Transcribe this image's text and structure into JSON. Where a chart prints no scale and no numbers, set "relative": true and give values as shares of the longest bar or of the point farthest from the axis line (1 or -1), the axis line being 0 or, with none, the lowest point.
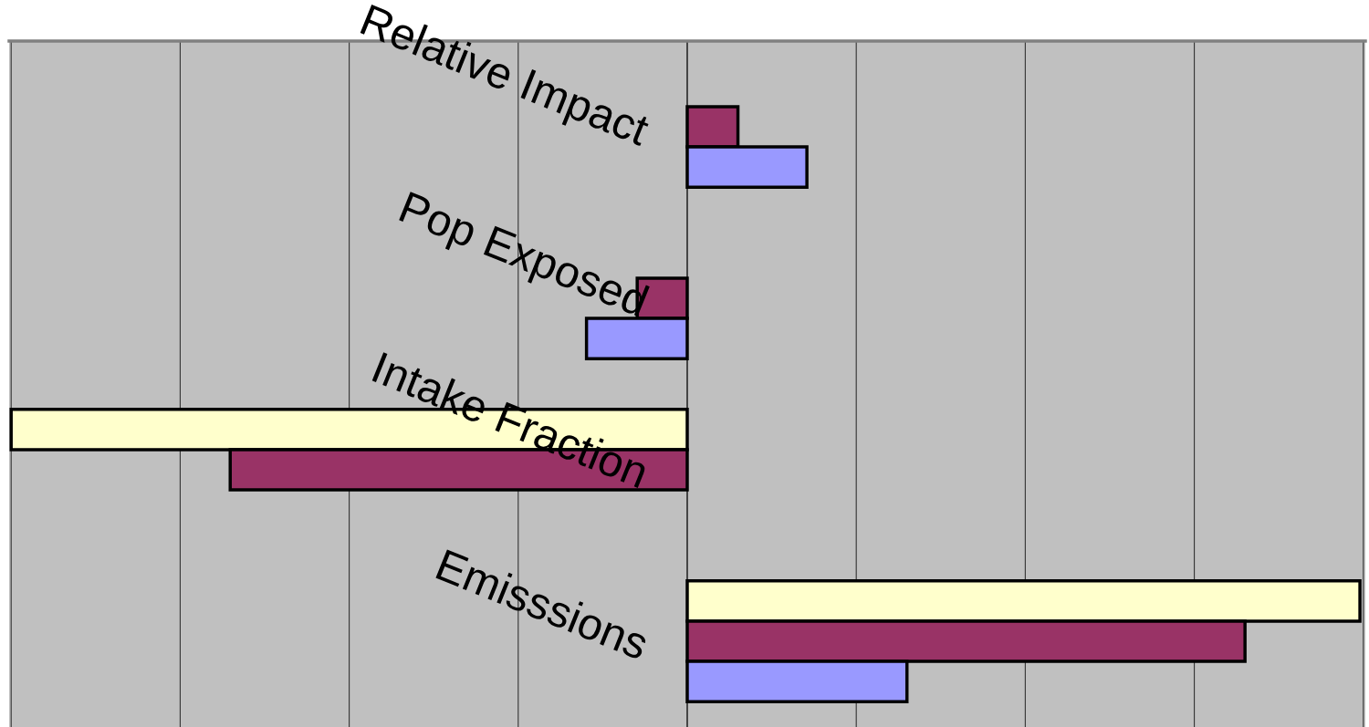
{
  "chart_data": {
    "type": "bar",
    "orientation": "horizontal",
    "relative": true,
    "grid": "x",
    "legend": false,
    "categories": [
      "Relative Impact",
      "Pop Exposed",
      "Intake Fraction",
      "Emisssions"
    ],
    "series": [
      {
        "color": "#ffffcc",
        "values": [
          null,
          null,
          -1,
          0.995
        ]
      },
      {
        "color": "#993366",
        "values": [
          0.075,
          -0.074,
          -0.676,
          0.825
        ]
      },
      {
        "color": "#9999ff",
        "values": [
          0.177,
          -0.149,
          null,
          0.325
        ]
      }
    ]
  }
}
